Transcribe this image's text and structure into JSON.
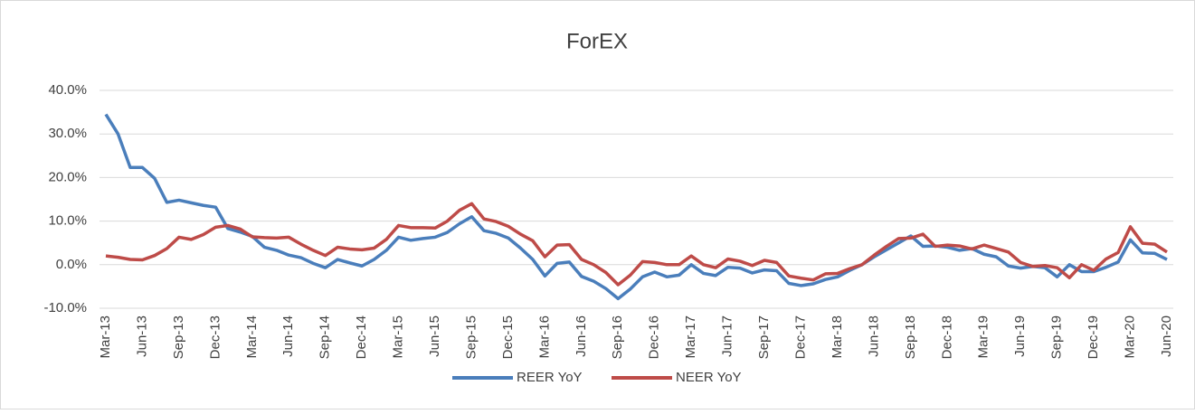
{
  "chart_data": {
    "type": "line",
    "title": "ForEX",
    "categories": [
      "Mar-13",
      null,
      null,
      "Jun-13",
      null,
      null,
      "Sep-13",
      null,
      null,
      "Dec-13",
      null,
      null,
      "Mar-14",
      null,
      null,
      "Jun-14",
      null,
      null,
      "Sep-14",
      null,
      null,
      "Dec-14",
      null,
      null,
      "Mar-15",
      null,
      null,
      "Jun-15",
      null,
      null,
      "Sep-15",
      null,
      null,
      "Dec-15",
      null,
      null,
      "Mar-16",
      null,
      null,
      "Jun-16",
      null,
      null,
      "Sep-16",
      null,
      null,
      "Dec-16",
      null,
      null,
      "Mar-17",
      null,
      null,
      "Jun-17",
      null,
      null,
      "Sep-17",
      null,
      null,
      "Dec-17",
      null,
      null,
      "Mar-18",
      null,
      null,
      "Jun-18",
      null,
      null,
      "Sep-18",
      null,
      null,
      "Dec-18",
      null,
      null,
      "Mar-19",
      null,
      null,
      "Jun-19",
      null,
      null,
      "Sep-19",
      null,
      null,
      "Dec-19",
      null,
      null,
      "Mar-20",
      null,
      null,
      "Jun-20"
    ],
    "series": [
      {
        "name": "REER YoY",
        "color": "#4a7ebb",
        "values": [
          34.5,
          30,
          22.3,
          22.3,
          19.8,
          14.3,
          14.8,
          14.2,
          13.6,
          13.2,
          8.3,
          7.5,
          6.5,
          4,
          3.3,
          2.2,
          1.6,
          0.3,
          -0.7,
          1.2,
          0.4,
          -0.3,
          1.2,
          3.3,
          6.3,
          5.6,
          6.0,
          6.3,
          7.4,
          9.4,
          11,
          7.8,
          7.2,
          6.1,
          3.8,
          1.2,
          -2.6,
          0.3,
          0.6,
          -2.7,
          -3.8,
          -5.5,
          -7.8,
          -5.6,
          -2.8,
          -1.7,
          -2.8,
          -2.4,
          0.0,
          -2.0,
          -2.5,
          -0.6,
          -0.8,
          -1.9,
          -1.2,
          -1.4,
          -4.3,
          -4.8,
          -4.4,
          -3.4,
          -2.8,
          -1.3,
          0.0,
          1.8,
          3.4,
          5.0,
          6.6,
          4.2,
          4.3,
          4.0,
          3.3,
          3.7,
          2.4,
          1.8,
          -0.3,
          -0.8,
          -0.4,
          -0.7,
          -2.8,
          0.0,
          -1.6,
          -1.6,
          -0.6,
          0.6,
          5.7,
          2.7,
          2.6,
          1.2
        ]
      },
      {
        "name": "NEER YoY",
        "color": "#be4b48",
        "values": [
          2.0,
          1.7,
          1.2,
          1.1,
          2.1,
          3.7,
          6.3,
          5.8,
          6.9,
          8.6,
          9.0,
          8.2,
          6.4,
          6.2,
          6.1,
          6.3,
          4.7,
          3.3,
          2.1,
          4.0,
          3.6,
          3.4,
          3.8,
          5.8,
          9.0,
          8.5,
          8.5,
          8.4,
          10.0,
          12.5,
          14.0,
          10.5,
          9.9,
          8.8,
          7.0,
          5.5,
          1.8,
          4.5,
          4.6,
          1.2,
          0.0,
          -1.8,
          -4.6,
          -2.4,
          0.7,
          0.5,
          0.0,
          0.0,
          2.0,
          0.0,
          -0.7,
          1.3,
          0.8,
          -0.2,
          1.0,
          0.5,
          -2.6,
          -3.1,
          -3.5,
          -2.1,
          -2.0,
          -0.9,
          0.0,
          2.2,
          4.2,
          6.0,
          6.1,
          7.0,
          4.2,
          4.5,
          4.3,
          3.6,
          4.5,
          3.7,
          2.9,
          0.5,
          -0.4,
          -0.2,
          -0.7,
          -3.0,
          0.0,
          -1.3,
          1.3,
          2.8,
          8.7,
          4.9,
          4.7,
          2.9
        ]
      }
    ],
    "ylim": [
      -10,
      40
    ],
    "yticks": [
      {
        "value": -10,
        "label": "-10.0%"
      },
      {
        "value": 0,
        "label": "0.0%"
      },
      {
        "value": 10,
        "label": "10.0%"
      },
      {
        "value": 20,
        "label": "20.0%"
      },
      {
        "value": 30,
        "label": "30.0%"
      },
      {
        "value": 40,
        "label": "40.0%"
      }
    ],
    "grid": true,
    "legend": "bottom"
  }
}
